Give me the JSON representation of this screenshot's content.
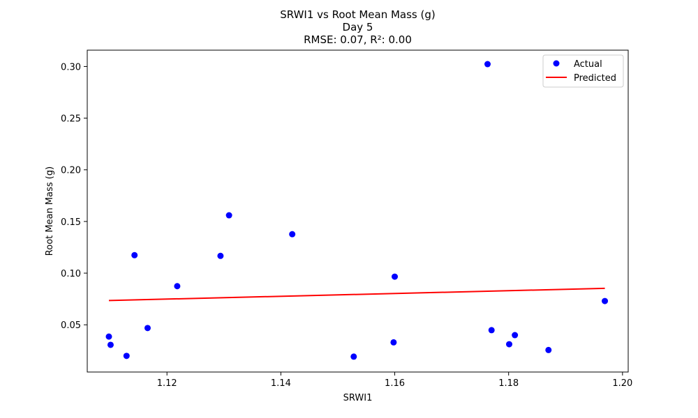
{
  "chart_data": {
    "type": "scatter",
    "title": "SRWI1 vs Root Mean Mass (g)",
    "subtitle": "Day 5",
    "metrics": "RMSE: 0.07, R²: 0.00",
    "xlabel": "SRWI1",
    "ylabel": "Root Mean Mass (g)",
    "xlim": [
      1.106,
      1.201
    ],
    "ylim": [
      0.0043,
      0.3158
    ],
    "xticks": [
      1.12,
      1.14,
      1.16,
      1.18,
      1.2
    ],
    "xtick_labels": [
      "1.12",
      "1.14",
      "1.16",
      "1.18",
      "1.20"
    ],
    "yticks": [
      0.05,
      0.1,
      0.15,
      0.2,
      0.25,
      0.3
    ],
    "ytick_labels": [
      "0.05",
      "0.10",
      "0.15",
      "0.20",
      "0.25",
      "0.30"
    ],
    "grid": false,
    "legend_position": "top-right",
    "series": [
      {
        "name": "Actual",
        "kind": "points",
        "color": "#0000ff",
        "x": [
          1.1098,
          1.1101,
          1.1129,
          1.1143,
          1.1166,
          1.1218,
          1.1294,
          1.1309,
          1.142,
          1.1528,
          1.1598,
          1.16,
          1.1763,
          1.177,
          1.1801,
          1.1811,
          1.187,
          1.1969
        ],
        "y": [
          0.0386,
          0.0306,
          0.0199,
          0.1174,
          0.0469,
          0.0874,
          0.1167,
          0.156,
          0.1377,
          0.0192,
          0.033,
          0.0966,
          0.3023,
          0.0448,
          0.0312,
          0.04,
          0.0256,
          0.073
        ]
      },
      {
        "name": "Predicted",
        "kind": "line",
        "color": "#ff0000",
        "x": [
          1.1098,
          1.1969
        ],
        "y": [
          0.0735,
          0.0853
        ]
      }
    ]
  }
}
